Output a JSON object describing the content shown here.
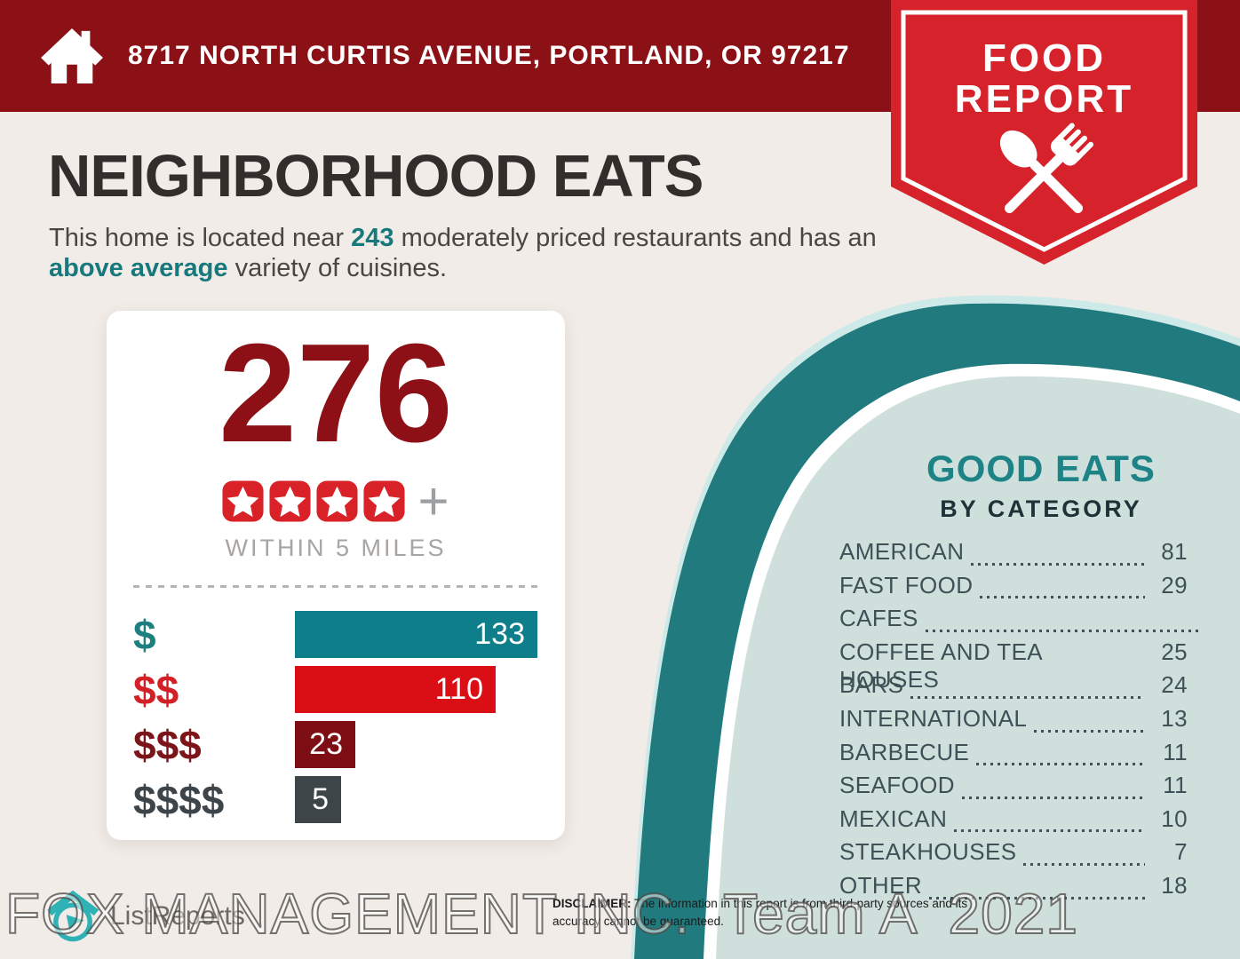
{
  "header": {
    "address": "8717 NORTH CURTIS AVENUE, PORTLAND, OR 97217",
    "badge": {
      "line1": "FOOD",
      "line2": "REPORT"
    }
  },
  "title": "NEIGHBORHOOD EATS",
  "intro": {
    "part1": "This home is located near ",
    "count": "243",
    "part2": " moderately priced restaurants and has an ",
    "highlight": "above average",
    "part3": " variety of cuisines."
  },
  "summary_card": {
    "total": "276",
    "stars": 4,
    "plus": "+",
    "subtitle": "WITHIN 5 MILES"
  },
  "chart_data": [
    {
      "type": "bar",
      "title": "",
      "categories": [
        "$",
        "$$",
        "$$$",
        "$$$$"
      ],
      "values": [
        133,
        110,
        23,
        5
      ],
      "xlim": [
        0,
        133
      ],
      "orientation": "horizontal",
      "value_labels_inside_bars": true,
      "colors": [
        "#0e7f8a",
        "#da0e15",
        "#7d0e13",
        "#3e4549"
      ],
      "label_colors": [
        "#1d7f7f",
        "#d32026",
        "#7c1519",
        "#3e454a"
      ]
    },
    {
      "type": "table",
      "title": "GOOD EATS BY CATEGORY",
      "rows": [
        {
          "label": "AMERICAN",
          "value": "81"
        },
        {
          "label": "FAST FOOD",
          "value": "29"
        },
        {
          "label": "CAFES",
          "value": null
        },
        {
          "label": "COFFEE AND TEA HOUSES",
          "value": "25"
        },
        {
          "label": "BARS",
          "value": "24"
        },
        {
          "label": "INTERNATIONAL",
          "value": "13"
        },
        {
          "label": "BARBECUE",
          "value": "11"
        },
        {
          "label": "SEAFOOD",
          "value": "11"
        },
        {
          "label": "MEXICAN",
          "value": "10"
        },
        {
          "label": "STEAKHOUSES",
          "value": "7"
        },
        {
          "label": "OTHER",
          "value": "18"
        }
      ]
    }
  ],
  "good_eats": {
    "title": "GOOD EATS",
    "subtitle": "BY CATEGORY"
  },
  "footer": {
    "logo_text": "ListReports",
    "disclaimer_label": "DISCLAIMER:",
    "disclaimer_text": " The information in this report is from third-party sources and its accuracy cannot be guaranteed."
  },
  "watermark": "FOX MANAGEMENT INC.  Team A  2021",
  "icons": {
    "home": "white house with chimney",
    "badge": "crossed spoon and fork",
    "star": "red rounded tile with white star",
    "logo_mark": "teal house with pin"
  },
  "colors": {
    "background": "#f1ece8",
    "banner": "#8b1117",
    "badge_red": "#d6232b",
    "dark_red": "#8c1016",
    "teal_accent": "#18797d",
    "circle_teal": "#217b7e",
    "circle_inner": "#cfe0dc",
    "circle_halo": "#cdeae9",
    "star_red": "#d82227",
    "list_text": "#3f5156"
  }
}
